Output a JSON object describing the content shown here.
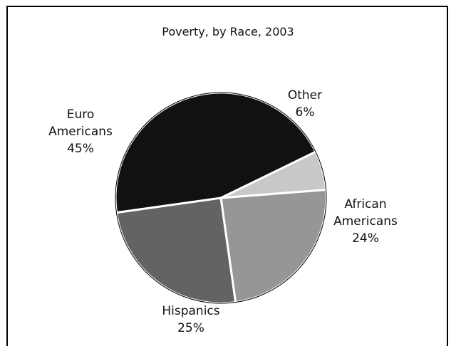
{
  "chart_data": {
    "type": "pie",
    "title": "Poverty, by Race, 2003",
    "slices": [
      {
        "label_lines": [
          "Other"
        ],
        "value_label": "6%",
        "value": 6,
        "color": "#c8c8c8"
      },
      {
        "label_lines": [
          "African",
          "Americans"
        ],
        "value_label": "24%",
        "value": 24,
        "color": "#969696"
      },
      {
        "label_lines": [
          "Hispanics"
        ],
        "value_label": "25%",
        "value": 25,
        "color": "#636363"
      },
      {
        "label_lines": [
          "Euro",
          "Americans"
        ],
        "value_label": "45%",
        "value": 45,
        "color": "#111111"
      }
    ],
    "start_angle_deg": 64,
    "direction": "clockwise"
  }
}
